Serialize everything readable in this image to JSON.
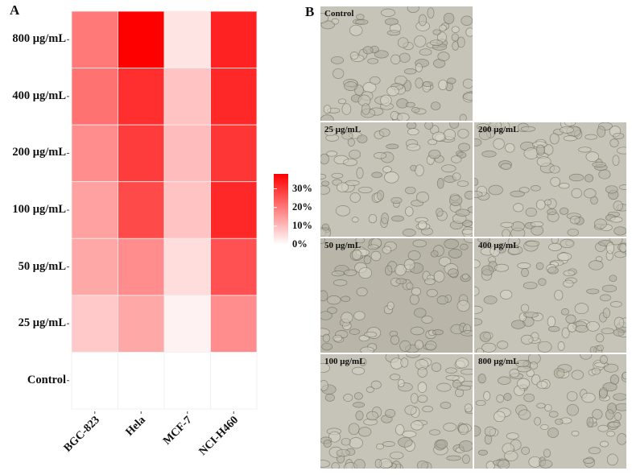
{
  "panels": {
    "a": "A",
    "b": "B"
  },
  "chart_data": {
    "type": "heatmap",
    "rows": [
      "800 μg/mL",
      "400 μg/mL",
      "200 μg/mL",
      "100 μg/mL",
      "50 μg/mL",
      "25 μg/mL",
      "Control"
    ],
    "columns": [
      "BGC-823",
      "Hela",
      "MCF-7",
      "NCI-H460"
    ],
    "values": [
      [
        20,
        38,
        4,
        33
      ],
      [
        21,
        31,
        9,
        32
      ],
      [
        17,
        29,
        10,
        30
      ],
      [
        14,
        27,
        9,
        32
      ],
      [
        13,
        17,
        5,
        26
      ],
      [
        8,
        13,
        2,
        17
      ],
      [
        0,
        0,
        0,
        0
      ]
    ],
    "units": "%",
    "color_range": [
      0,
      38
    ],
    "colors": {
      "low": "#ffffff",
      "high": "#ff0000"
    },
    "legend": {
      "placement": "right",
      "ticks": [
        {
          "value": 30,
          "label": "30%"
        },
        {
          "value": 20,
          "label": "20%"
        },
        {
          "value": 10,
          "label": "10%"
        },
        {
          "value": 0,
          "label": "0%"
        }
      ]
    }
  },
  "micrographs": [
    {
      "label": "Control"
    },
    {
      "label": "25 μg/mL"
    },
    {
      "label": "200 μg/mL"
    },
    {
      "label": "50 μg/mL"
    },
    {
      "label": "400 μg/mL"
    },
    {
      "label": "100 μg/mL"
    },
    {
      "label": "800 μg/mL"
    }
  ]
}
